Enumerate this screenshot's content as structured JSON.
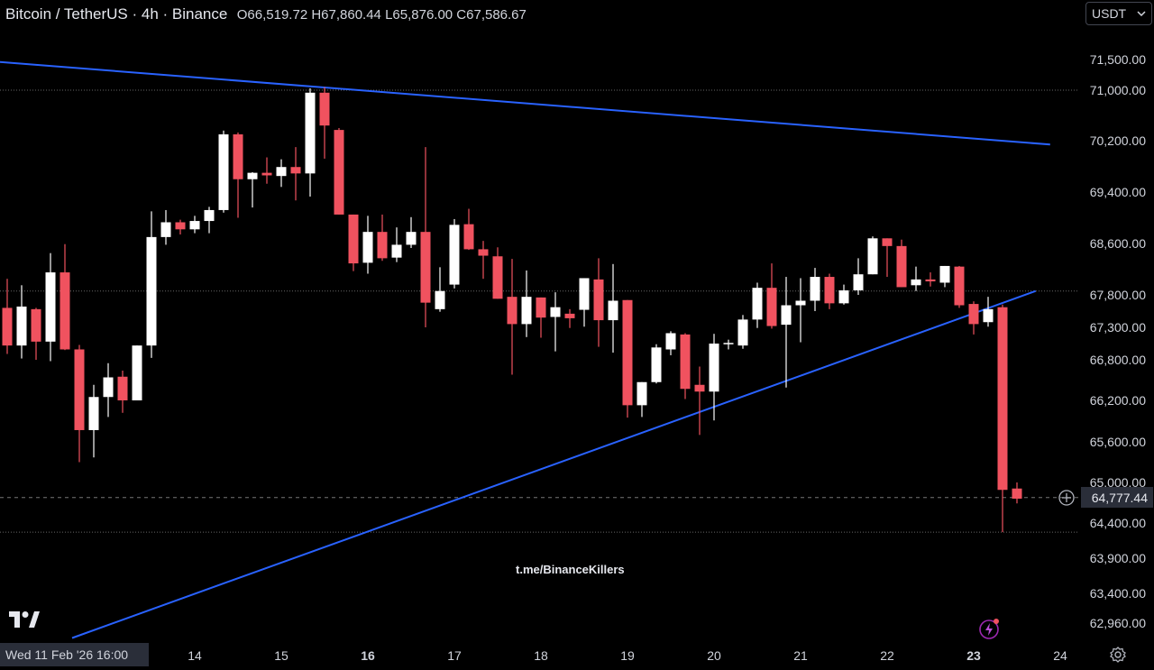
{
  "header": {
    "symbol": "Bitcoin / TetherUS · 4h · Binance",
    "ohlc": "O66,519.72 H67,860.44 L65,876.00 C67,586.67"
  },
  "currency_selector": {
    "label": "USDT"
  },
  "watermark": "t.me/BinanceKillers",
  "crosshair_date": "Wed 11 Feb '26   16:00",
  "current_price_label": "64,777.44",
  "colors": {
    "up": "#ffffff",
    "down": "#f0525f",
    "trendline": "#2962ff",
    "grid": "#555"
  },
  "icons": [
    "tradingview-logo-icon",
    "lightning-icon",
    "gear-icon",
    "crosshair-plus-icon",
    "chevron-down-icon"
  ],
  "chart_data": {
    "type": "candlestick",
    "symbol": "BTCUSDT",
    "timeframe": "4h",
    "y_ticks": [
      "71,500.00",
      "71,000.00",
      "70,200.00",
      "69,400.00",
      "68,600.00",
      "67,800.00",
      "67,300.00",
      "66,800.00",
      "66,200.00",
      "65,600.00",
      "65,000.00",
      "64,400.00",
      "63,900.00",
      "63,400.00",
      "62,960.00"
    ],
    "y_tick_values": [
      71500,
      71000,
      70200,
      69400,
      68600,
      67800,
      67300,
      66800,
      66200,
      65600,
      65000,
      64400,
      63900,
      63400,
      62960
    ],
    "x_ticks": [
      {
        "label": "14",
        "bold": false,
        "candle": 13
      },
      {
        "label": "15",
        "bold": false,
        "candle": 19
      },
      {
        "label": "16",
        "bold": true,
        "candle": 25
      },
      {
        "label": "17",
        "bold": false,
        "candle": 31
      },
      {
        "label": "18",
        "bold": false,
        "candle": 37
      },
      {
        "label": "19",
        "bold": false,
        "candle": 43
      },
      {
        "label": "20",
        "bold": false,
        "candle": 49
      },
      {
        "label": "21",
        "bold": false,
        "candle": 55
      },
      {
        "label": "22",
        "bold": false,
        "candle": 61
      },
      {
        "label": "23",
        "bold": true,
        "candle": 67
      },
      {
        "label": "24",
        "bold": false,
        "candle": 73
      }
    ],
    "candles": [
      {
        "o": 67600,
        "h": 68050,
        "l": 66890,
        "c": 67020
      },
      {
        "o": 67020,
        "h": 67950,
        "l": 66820,
        "c": 67620
      },
      {
        "o": 67580,
        "h": 67600,
        "l": 66800,
        "c": 67080
      },
      {
        "o": 67080,
        "h": 68450,
        "l": 66780,
        "c": 68150
      },
      {
        "o": 68150,
        "h": 68590,
        "l": 66950,
        "c": 66960
      },
      {
        "o": 66960,
        "h": 67030,
        "l": 65300,
        "c": 65770
      },
      {
        "o": 65770,
        "h": 66430,
        "l": 65370,
        "c": 66250
      },
      {
        "o": 66250,
        "h": 66750,
        "l": 65960,
        "c": 66540
      },
      {
        "o": 66550,
        "h": 66640,
        "l": 66020,
        "c": 66200
      },
      {
        "o": 66200,
        "h": 67010,
        "l": 66200,
        "c": 67020
      },
      {
        "o": 67020,
        "h": 69100,
        "l": 66830,
        "c": 68700
      },
      {
        "o": 68700,
        "h": 69120,
        "l": 68580,
        "c": 68930
      },
      {
        "o": 68930,
        "h": 68970,
        "l": 68740,
        "c": 68820
      },
      {
        "o": 68820,
        "h": 69030,
        "l": 68760,
        "c": 68950
      },
      {
        "o": 68950,
        "h": 69170,
        "l": 68760,
        "c": 69120
      },
      {
        "o": 69120,
        "h": 70360,
        "l": 69080,
        "c": 70300
      },
      {
        "o": 70300,
        "h": 70330,
        "l": 69000,
        "c": 69600
      },
      {
        "o": 69600,
        "h": 69710,
        "l": 69160,
        "c": 69700
      },
      {
        "o": 69700,
        "h": 69940,
        "l": 69530,
        "c": 69660
      },
      {
        "o": 69650,
        "h": 69910,
        "l": 69480,
        "c": 69790
      },
      {
        "o": 69790,
        "h": 70100,
        "l": 69270,
        "c": 69690
      },
      {
        "o": 69690,
        "h": 71030,
        "l": 69330,
        "c": 70960
      },
      {
        "o": 70960,
        "h": 71050,
        "l": 69920,
        "c": 70440
      },
      {
        "o": 70370,
        "h": 70400,
        "l": 69080,
        "c": 69050
      },
      {
        "o": 69050,
        "h": 69050,
        "l": 68170,
        "c": 68290
      },
      {
        "o": 68300,
        "h": 69030,
        "l": 68130,
        "c": 68780
      },
      {
        "o": 68780,
        "h": 69050,
        "l": 68330,
        "c": 68370
      },
      {
        "o": 68380,
        "h": 68850,
        "l": 68310,
        "c": 68580
      },
      {
        "o": 68580,
        "h": 69010,
        "l": 68530,
        "c": 68780
      },
      {
        "o": 68780,
        "h": 70100,
        "l": 67300,
        "c": 67680
      },
      {
        "o": 67580,
        "h": 68230,
        "l": 67540,
        "c": 67860
      },
      {
        "o": 67960,
        "h": 68980,
        "l": 67900,
        "c": 68890
      },
      {
        "o": 68900,
        "h": 69140,
        "l": 68500,
        "c": 68510
      },
      {
        "o": 68510,
        "h": 68640,
        "l": 68050,
        "c": 68410
      },
      {
        "o": 68400,
        "h": 68540,
        "l": 67740,
        "c": 67740
      },
      {
        "o": 67770,
        "h": 68360,
        "l": 66580,
        "c": 67350
      },
      {
        "o": 67350,
        "h": 68180,
        "l": 67150,
        "c": 67770
      },
      {
        "o": 67760,
        "h": 67760,
        "l": 67140,
        "c": 67450
      },
      {
        "o": 67460,
        "h": 67840,
        "l": 66930,
        "c": 67610
      },
      {
        "o": 67510,
        "h": 67580,
        "l": 67290,
        "c": 67440
      },
      {
        "o": 67570,
        "h": 68040,
        "l": 67310,
        "c": 68060
      },
      {
        "o": 68040,
        "h": 68370,
        "l": 67000,
        "c": 67410
      },
      {
        "o": 67410,
        "h": 68280,
        "l": 66910,
        "c": 67710
      },
      {
        "o": 67720,
        "h": 67720,
        "l": 65950,
        "c": 66130
      },
      {
        "o": 66130,
        "h": 66430,
        "l": 65960,
        "c": 66470
      },
      {
        "o": 66470,
        "h": 67040,
        "l": 66450,
        "c": 66990
      },
      {
        "o": 66960,
        "h": 67240,
        "l": 66870,
        "c": 67210
      },
      {
        "o": 67190,
        "h": 67210,
        "l": 66220,
        "c": 66370
      },
      {
        "o": 66430,
        "h": 66700,
        "l": 65700,
        "c": 66330
      },
      {
        "o": 66330,
        "h": 67200,
        "l": 65910,
        "c": 67050
      },
      {
        "o": 67050,
        "h": 67110,
        "l": 66960,
        "c": 67060
      },
      {
        "o": 67020,
        "h": 67490,
        "l": 66970,
        "c": 67420
      },
      {
        "o": 67420,
        "h": 67990,
        "l": 67290,
        "c": 67910
      },
      {
        "o": 67910,
        "h": 68290,
        "l": 67280,
        "c": 67320
      },
      {
        "o": 67340,
        "h": 68080,
        "l": 66390,
        "c": 67640
      },
      {
        "o": 67640,
        "h": 68060,
        "l": 67070,
        "c": 67710
      },
      {
        "o": 67710,
        "h": 68220,
        "l": 67550,
        "c": 68080
      },
      {
        "o": 68080,
        "h": 68130,
        "l": 67580,
        "c": 67670
      },
      {
        "o": 67670,
        "h": 67960,
        "l": 67650,
        "c": 67870
      },
      {
        "o": 67870,
        "h": 68370,
        "l": 67800,
        "c": 68120
      },
      {
        "o": 68120,
        "h": 68710,
        "l": 68130,
        "c": 68680
      },
      {
        "o": 68680,
        "h": 68650,
        "l": 68080,
        "c": 68560
      },
      {
        "o": 68560,
        "h": 68660,
        "l": 67940,
        "c": 67920
      },
      {
        "o": 67950,
        "h": 68240,
        "l": 67860,
        "c": 68040
      },
      {
        "o": 68040,
        "h": 68150,
        "l": 67930,
        "c": 68010
      },
      {
        "o": 67990,
        "h": 68250,
        "l": 67920,
        "c": 68250
      },
      {
        "o": 68240,
        "h": 68250,
        "l": 67600,
        "c": 67640
      },
      {
        "o": 67660,
        "h": 67700,
        "l": 67190,
        "c": 67350
      },
      {
        "o": 67380,
        "h": 67770,
        "l": 67310,
        "c": 67580
      },
      {
        "o": 67610,
        "h": 67650,
        "l": 64270,
        "c": 64890
      },
      {
        "o": 64910,
        "h": 65000,
        "l": 64690,
        "c": 64760
      }
    ],
    "trendlines": [
      {
        "name": "",
        "from": {
          "candle": -0.5,
          "price": 71460
        },
        "to": {
          "candle": 72.3,
          "price": 70140
        }
      },
      {
        "name": "",
        "from": {
          "candle": 4.5,
          "price": 62740
        },
        "to": {
          "candle": 71.3,
          "price": 67860
        }
      }
    ],
    "horizontal_lines": [
      71000,
      67860,
      64270
    ],
    "current_price": 64777.44,
    "grid": false,
    "legend": "none"
  }
}
